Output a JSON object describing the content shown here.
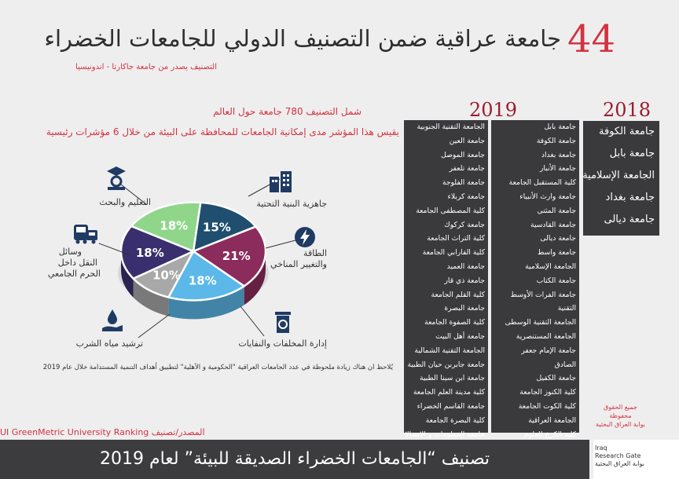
{
  "header": {
    "count": "44",
    "title": "جامعة عراقية ضمن التصنيف الدولي للجامعات الخضراء",
    "subtitle": "التصنيف يصدر من جامعة جاكارتا - اندونيسيا"
  },
  "info": {
    "line1": "شمل التصنيف 780 جامعة حول العالم",
    "line2": "يقيس هذا المؤشر مدى إمكانية الجامعات للمحافظة على البيئة من خلال 6 مؤشرات رئيسية"
  },
  "years": {
    "y2018": "2018",
    "y2019": "2019"
  },
  "list2018": [
    "جامعة الكوفة",
    "جامعة بابل",
    "الجامعة الإسلامية",
    "جامعة بغداد",
    "جامعة ديالى"
  ],
  "list2019_col1": [
    "جامعة بابل",
    "جامعة الكوفة",
    "جامعة بغداد",
    "جامعة الأنبار",
    "كلية المستقبل الجامعة",
    "جامعة وارث الأنبياء",
    "جامعة المثنى",
    "جامعة القادسية",
    "جامعة ديالى",
    "جامعة واسط",
    "الجامعة الإسلامية",
    "جامعة الكتاب",
    "جامعة الفرات الأوسط",
    "التقنية",
    "الجامعة التقنية الوسطى",
    "الجامعة المستنصرية",
    "جامعة الإمام جعفر",
    "الصادق",
    "جامعة الكفيل",
    "كلية الكنوز الجامعة",
    "كلية الكوت الجامعة",
    "الجامعة العراقية",
    "كلية الكرخ للعلوم"
  ],
  "list2019_col2": [
    "الجامعة التقنية الجنوبية",
    "جامعة العين",
    "جامعة الموصل",
    "جامعة تلعفر",
    "جامعة الفلوجة",
    "جامعة كربلاء",
    "كلية المصطفى الجامعة",
    "جامعة كركوك",
    "كلية التراث الجامعة",
    "كلية الفارابي الجامعة",
    "جامعة العميد",
    "جامعة ذي قار",
    "كلية القلم الجامعة",
    "جامعة البصرة",
    "كلية الصفوة الجامعة",
    "جامعة أهل البيت",
    "الجامعة التقنية الشمالية",
    "جامعة جابربن حيان الطبية",
    "جامعة ابن سينا الطبية",
    "كلية مدينة العلم الجامعة",
    "جامعة القاسم الخضراء",
    "كلية البصرة الجامعة",
    "جامعة المعلومات و الاتصالات"
  ],
  "chart_data": {
    "type": "pie",
    "title": "",
    "categories": [
      "جاهزية البنية التحتية",
      "الطاقة والتغيير المناخي",
      "إدارة المخلفات والنفايات",
      "ترشيد مياه الشرب",
      "وسائل النقل داخل الحرم الجامعي",
      "التعليم والبحث"
    ],
    "values": [
      15,
      21,
      18,
      10,
      18,
      18
    ],
    "value_labels": [
      "15%",
      "21%",
      "18%",
      "10%",
      "18%",
      "18%"
    ],
    "colors": [
      "#1f4e6e",
      "#8c2c5c",
      "#5bb8e8",
      "#a8a8a8",
      "#3a2f6e",
      "#8fd68a"
    ],
    "legend": "labels-around"
  },
  "labels": {
    "infra": "جاهزية البنية التحتية",
    "energy_1": "الطاقة",
    "energy_2": "والتغيير المناخي",
    "waste": "إدارة المخلفات والنفايات",
    "water": "ترشيد مياه الشرب",
    "transport_1": "وسائل",
    "transport_2": "النقل داخل",
    "transport_3": "الحرم الجامعي",
    "education": "التعليم والبحث"
  },
  "note": "يُلاحظ ان هناك زيادة ملحوظة في عدد الجامعات العراقية \"الحكومية و الأهلية\" لتطبيق أهداف التنمية المستدامة خلال عام 2019",
  "source": "UI GreenMetric University Ranking المصدر/تصنيف",
  "credit": {
    "l1": "جميع الحقوق",
    "l2": "محفوظة",
    "l3": "بوابة العراق البحثية"
  },
  "footer": {
    "title": "تصنيف “الجامعات الخضراء الصديقة للبيئة” لعام 2019"
  },
  "logo": {
    "l1": "Iraq",
    "l2": "Research Gate",
    "l3": "بوابة العراق البحثية"
  },
  "colors": {
    "accent": "#d4323f",
    "dark": "#3a3a3c",
    "year": "#9b1c2e"
  }
}
